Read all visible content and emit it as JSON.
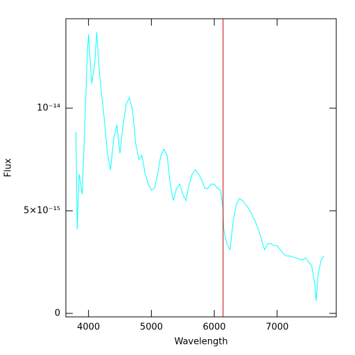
{
  "chart_data": {
    "type": "line",
    "xlabel": "Wavelength",
    "ylabel": "Flux",
    "x": [
      3800,
      3820,
      3850,
      3900,
      3950,
      3980,
      4000,
      4050,
      4100,
      4130,
      4170,
      4200,
      4250,
      4300,
      4350,
      4400,
      4450,
      4500,
      4550,
      4600,
      4650,
      4700,
      4750,
      4800,
      4850,
      4900,
      4950,
      5000,
      5050,
      5100,
      5150,
      5200,
      5250,
      5300,
      5350,
      5400,
      5450,
      5500,
      5550,
      5600,
      5650,
      5700,
      5750,
      5800,
      5850,
      5900,
      5950,
      6000,
      6050,
      6100,
      6140,
      6150,
      6200,
      6250,
      6300,
      6350,
      6400,
      6450,
      6500,
      6550,
      6600,
      6650,
      6700,
      6750,
      6800,
      6850,
      6900,
      6950,
      7000,
      7050,
      7100,
      7150,
      7200,
      7300,
      7400,
      7450,
      7500,
      7550,
      7600,
      7620,
      7650,
      7700,
      7740
    ],
    "series": [
      {
        "color": "#00ffff",
        "values": [
          8.85e-15,
          4.1e-15,
          6.8e-15,
          5.8e-15,
          9.9e-15,
          1.26e-14,
          1.36e-14,
          1.12e-14,
          1.22e-14,
          1.37e-14,
          1.19e-14,
          1.09e-14,
          9.5e-15,
          7.8e-15,
          7e-15,
          8.5e-15,
          9.2e-15,
          7.8e-15,
          9.2e-15,
          1.02e-14,
          1.05e-14,
          9.9e-15,
          8.3e-15,
          7.5e-15,
          7.7e-15,
          6.8e-15,
          6.3e-15,
          6e-15,
          6.1e-15,
          6.8e-15,
          7.7e-15,
          8e-15,
          7.7e-15,
          6.3e-15,
          5.5e-15,
          6.1e-15,
          6.3e-15,
          5.8e-15,
          5.5e-15,
          6.3e-15,
          6.8e-15,
          7e-15,
          6.8e-15,
          6.5e-15,
          6.1e-15,
          6.1e-15,
          6.3e-15,
          6.3e-15,
          6.1e-15,
          6e-15,
          5.1e-15,
          4.1e-15,
          3.4e-15,
          3.1e-15,
          4.5e-15,
          5.3e-15,
          5.6e-15,
          5.5e-15,
          5.3e-15,
          5.1e-15,
          4.8e-15,
          4.5e-15,
          4.1e-15,
          3.6e-15,
          3.1e-15,
          3.4e-15,
          3.4e-15,
          3.3e-15,
          3.3e-15,
          3.1e-15,
          2.9e-15,
          2.8e-15,
          2.8e-15,
          2.7e-15,
          2.6e-15,
          2.7e-15,
          2.5e-15,
          2.3e-15,
          1.4e-15,
          6e-16,
          1.9e-15,
          2.6e-15,
          2.8e-15
        ]
      }
    ],
    "vline": {
      "x": 6140,
      "color": "#cc0000"
    },
    "xlim": [
      3640,
      7940
    ],
    "xticks": [
      4000,
      5000,
      6000,
      7000
    ],
    "ylim": [
      -1.7e-16,
      1.436e-14
    ],
    "yticks": [
      0,
      {
        "value": 5e-15,
        "label": "5×10⁻¹⁵"
      },
      {
        "value": 1e-14,
        "label": "10⁻¹⁴"
      }
    ]
  }
}
